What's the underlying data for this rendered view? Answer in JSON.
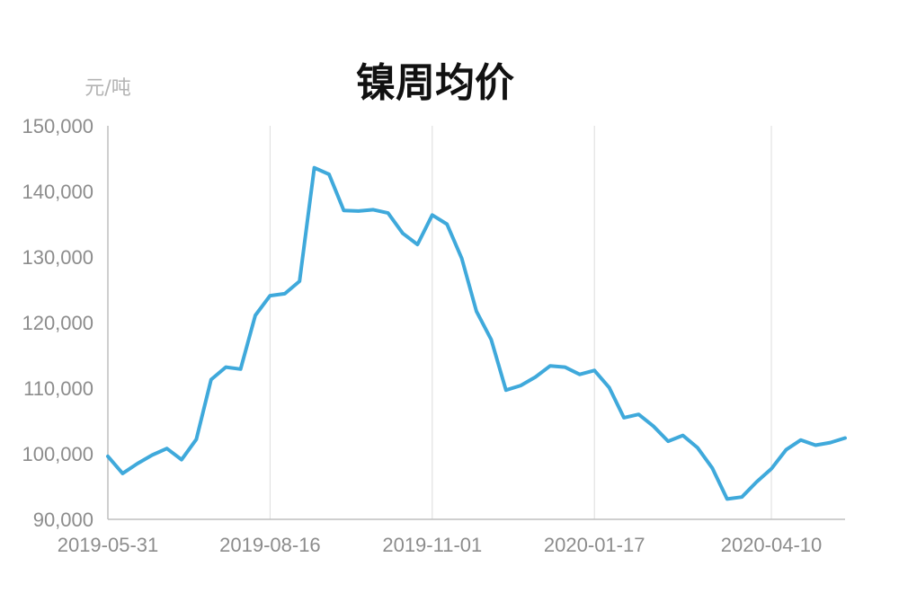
{
  "chart_data": {
    "type": "line",
    "title": "镍周均价",
    "ylabel": "元/吨",
    "xlabel": "",
    "ylim": [
      90000,
      150000
    ],
    "yticks": [
      "90,000",
      "100,000",
      "110,000",
      "120,000",
      "130,000",
      "140,000",
      "150,000"
    ],
    "ytick_values": [
      90000,
      100000,
      110000,
      120000,
      130000,
      140000,
      150000
    ],
    "xtick_labels": [
      "2019-05-31",
      "2019-08-16",
      "2019-11-01",
      "2020-01-17",
      "2020-04-10"
    ],
    "xtick_index": [
      0,
      11,
      22,
      33,
      45
    ],
    "grid": "vertical",
    "line_color": "#3fa9db",
    "series": [
      {
        "values": [
          99600,
          97000,
          98500,
          99800,
          100800,
          99100,
          102200,
          111300,
          113200,
          112900,
          121100,
          124100,
          124400,
          126300,
          143600,
          142600,
          137100,
          137000,
          137200,
          136700,
          133600,
          131900,
          136400,
          135000,
          129800,
          121700,
          117400,
          109700,
          110400,
          111700,
          113400,
          113200,
          112100,
          112700,
          110100,
          105500,
          106000,
          104200,
          101900,
          102800,
          100900,
          97800,
          93100,
          93400,
          95700,
          97700,
          100600,
          102100,
          101300,
          101700,
          102400
        ]
      }
    ]
  }
}
